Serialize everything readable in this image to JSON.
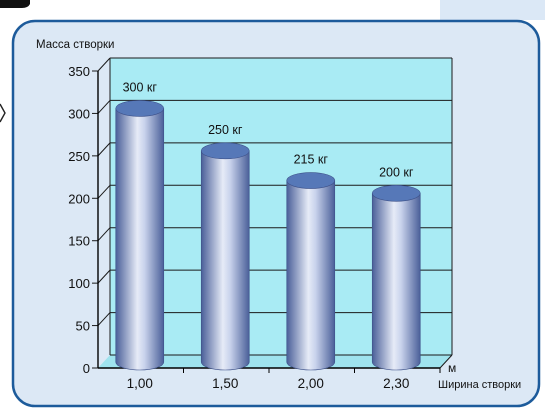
{
  "colors": {
    "frame_border": "#1d5b9b",
    "frame_fill": "#dce8f5",
    "top_tab": "#dbe8f6",
    "plot_back_fill": "#a9ebf4",
    "plot_floor_fill": "#9fe3ee",
    "grid_line": "#1a1a1a",
    "bar_dark": "#4a5f99",
    "bar_light": "#e6ebf7",
    "bar_top": "#5678b8"
  },
  "chart_data": {
    "type": "bar",
    "title": "",
    "ylabel": "Масса створки",
    "xlabel": "Ширина  створки",
    "x_unit": "м",
    "categories": [
      "1,00",
      "1,50",
      "2,00",
      "2,30"
    ],
    "values": [
      300,
      250,
      215,
      200
    ],
    "data_labels": [
      "300 кг",
      "250 кг",
      "215 кг",
      "200 кг"
    ],
    "ylim": [
      0,
      350
    ],
    "yticks": [
      0,
      50,
      100,
      150,
      200,
      250,
      300,
      350
    ],
    "grid": true,
    "style": "3d-cylinder"
  }
}
